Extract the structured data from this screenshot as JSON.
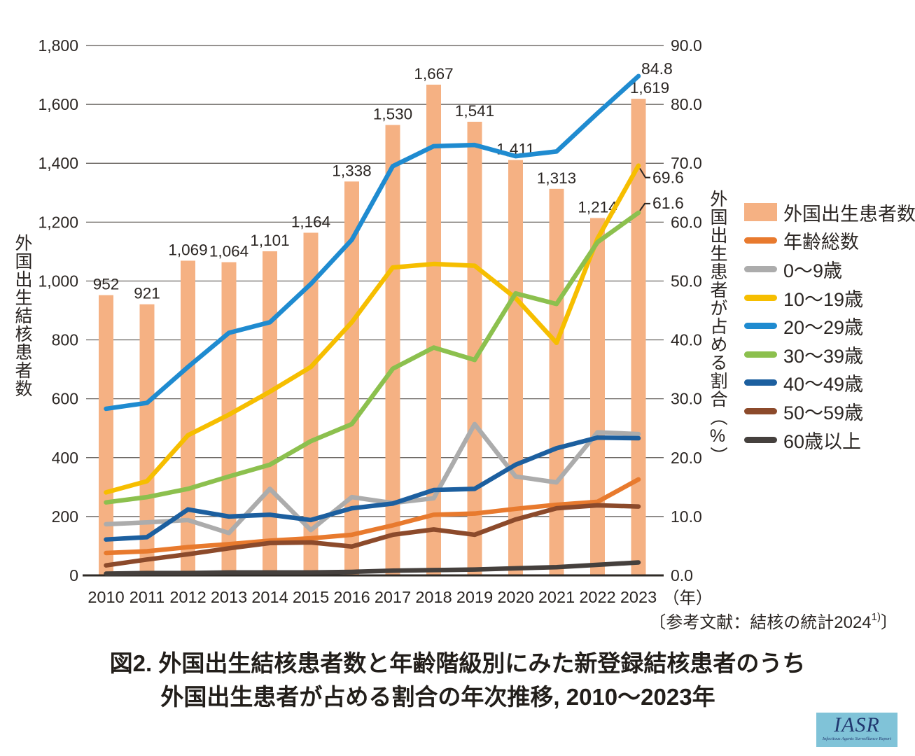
{
  "figure": {
    "title_line1": "図2. 外国出生結核患者数と年齢階級別にみた新登録結核患者のうち",
    "title_line2": "外国出生患者が占める割合の年次推移, 2010～2023年",
    "reference": {
      "open": "〔参考文献：結核の統計2024",
      "sup": "1)",
      "close": "〕"
    },
    "logo": {
      "text": "IASR",
      "subtext": "Infectious Agents Surveillance Report"
    }
  },
  "chart_data": {
    "type": "combo-bar-line",
    "categories": [
      "2010",
      "2011",
      "2012",
      "2013",
      "2014",
      "2015",
      "2016",
      "2017",
      "2018",
      "2019",
      "2020",
      "2021",
      "2022",
      "2023"
    ],
    "x_axis_unit": "（年）",
    "left_axis": {
      "title": "外国出生結核患者数",
      "min": 0,
      "max": 1800,
      "ticks": [
        "0",
        "200",
        "400",
        "600",
        "800",
        "1,000",
        "1,200",
        "1,400",
        "1,600",
        "1,800"
      ]
    },
    "right_axis": {
      "title": "外国出生患者が占める割合",
      "unit": "（%）",
      "min": 0,
      "max": 90,
      "ticks": [
        "0.0",
        "10.0",
        "20.0",
        "30.0",
        "40.0",
        "50.0",
        "60.0",
        "70.0",
        "80.0",
        "90.0"
      ]
    },
    "bar_series": {
      "id": "foreign-born-patients",
      "name": "外国出生患者数",
      "color": "#F5B183",
      "axis": "left",
      "values": [
        952,
        921,
        1069,
        1064,
        1101,
        1164,
        1338,
        1530,
        1667,
        1541,
        1411,
        1313,
        1214,
        1619
      ],
      "labels": [
        "952",
        "921",
        "1,069",
        "1,064",
        "1,101",
        "1,164",
        "1,338",
        "1,530",
        "1,667",
        "1,541",
        "1,411",
        "1,313",
        "1,214",
        "1,619"
      ]
    },
    "line_series": [
      {
        "id": "total",
        "name": "年齢総数",
        "color": "#E87A2E",
        "values": [
          3.8,
          4.1,
          4.8,
          5.3,
          5.9,
          6.3,
          6.9,
          8.5,
          10.3,
          10.5,
          11.3,
          12.0,
          12.5,
          16.3
        ]
      },
      {
        "id": "age-0-9",
        "name": "0～9歳",
        "color": "#ACACAC",
        "values": [
          8.7,
          9.0,
          9.4,
          7.2,
          14.7,
          7.7,
          13.3,
          12.3,
          13.1,
          25.7,
          16.8,
          15.8,
          24.3,
          24.0
        ]
      },
      {
        "id": "age-10-19",
        "name": "10～19歳",
        "color": "#F6BE00",
        "values": [
          14.1,
          16.0,
          23.8,
          27.3,
          31.2,
          35.4,
          43.0,
          52.3,
          52.9,
          52.6,
          47.1,
          39.5,
          57.2,
          69.6
        ]
      },
      {
        "id": "age-20-29",
        "name": "20～29歳",
        "color": "#1F8BD0",
        "values": [
          28.3,
          29.3,
          35.4,
          41.2,
          43.0,
          49.5,
          57.0,
          69.5,
          72.9,
          73.1,
          71.2,
          72.0,
          78.5,
          84.8
        ]
      },
      {
        "id": "age-30-39",
        "name": "30～39歳",
        "color": "#8CC04E",
        "values": [
          12.4,
          13.3,
          14.7,
          16.8,
          18.8,
          22.8,
          25.7,
          35.1,
          38.7,
          36.6,
          47.9,
          46.1,
          56.6,
          61.6
        ]
      },
      {
        "id": "age-40-49",
        "name": "40～49歳",
        "color": "#1C5F9F",
        "values": [
          6.1,
          6.5,
          11.2,
          10.0,
          10.3,
          9.4,
          11.4,
          12.2,
          14.5,
          14.7,
          18.8,
          21.6,
          23.4,
          23.3
        ]
      },
      {
        "id": "age-50-59",
        "name": "50～59歳",
        "color": "#8C4A2B",
        "values": [
          1.7,
          2.7,
          3.6,
          4.6,
          5.5,
          5.6,
          4.9,
          6.9,
          7.8,
          6.9,
          9.5,
          11.4,
          11.9,
          11.7
        ]
      },
      {
        "id": "age-60plus",
        "name": "60歳以上",
        "color": "#45403D",
        "values": [
          0.3,
          0.4,
          0.4,
          0.5,
          0.5,
          0.5,
          0.6,
          0.8,
          0.9,
          1.0,
          1.2,
          1.4,
          1.8,
          2.2
        ]
      }
    ],
    "annotations": [
      {
        "text": "84.8",
        "series": "age-20-29",
        "year": "2023"
      },
      {
        "text": "69.6",
        "series": "age-10-19",
        "year": "2023"
      },
      {
        "text": "61.6",
        "series": "age-30-39",
        "year": "2023"
      }
    ],
    "grid": true,
    "legend_position": "right"
  }
}
